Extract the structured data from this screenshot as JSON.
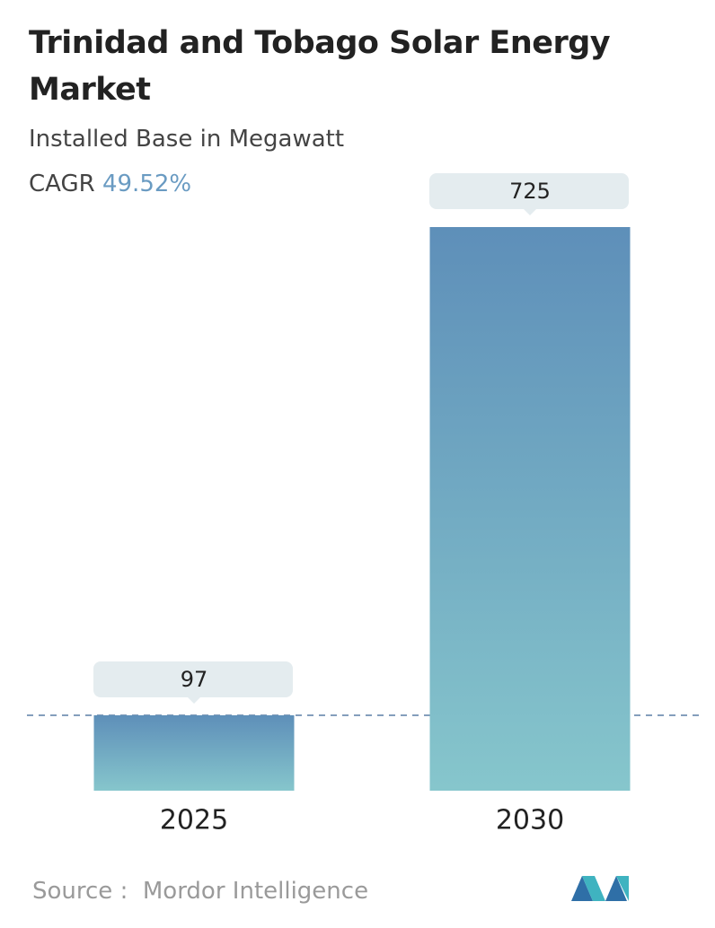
{
  "chart_data": {
    "type": "bar",
    "title": "Trinidad and Tobago Solar Energy Market",
    "subtitle": "Installed Base in Megawatt",
    "cagr_label": "CAGR",
    "cagr_value": "49.52%",
    "categories": [
      "2025",
      "2030"
    ],
    "values": [
      97,
      725
    ],
    "color_top": "#5e8fb9",
    "color_bottom": "#86c6cc",
    "source_label": "Source :",
    "source": "Mordor Intelligence"
  }
}
